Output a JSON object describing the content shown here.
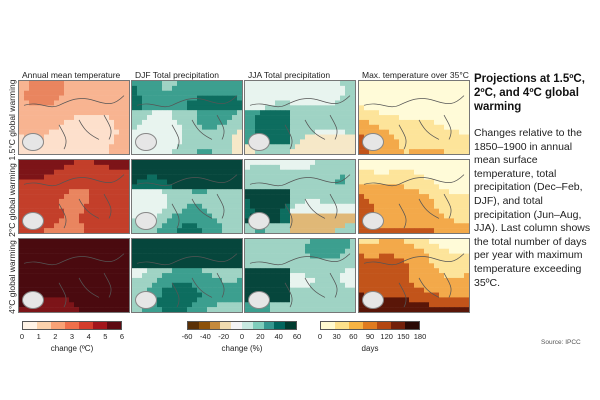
{
  "columns": [
    "Annual mean temperature",
    "DJF Total precipitation",
    "JJA Total precipitation",
    "Max. temperature over 35°C"
  ],
  "rows": [
    "1.5°C global warming",
    "2°C global warming",
    "4°C global warming"
  ],
  "colorbars": [
    {
      "ticks": [
        "0",
        "1",
        "2",
        "3",
        "4",
        "5",
        "6"
      ],
      "label": "change (ºC)",
      "colors": [
        "#fff3e6",
        "#fcd2ac",
        "#f9a276",
        "#ef6f4b",
        "#d43d2c",
        "#a3151b",
        "#5e0a12"
      ]
    },
    {
      "ticks": [
        "-60",
        "-40",
        "-20",
        "0",
        "20",
        "40",
        "60"
      ],
      "label": "change (%)",
      "colors": [
        "#5a3006",
        "#8c510a",
        "#c58a3c",
        "#f0dbb0",
        "#f4f4f4",
        "#c7e9e0",
        "#7fcdbb",
        "#35978f",
        "#01665e",
        "#003c30"
      ]
    },
    {
      "ticks": [
        "0",
        "30",
        "60",
        "90",
        "120",
        "150",
        "180"
      ],
      "label": "days",
      "colors": [
        "#fffad0",
        "#fde08a",
        "#f6b343",
        "#e07b1f",
        "#b34712",
        "#73200a",
        "#2b0a05"
      ]
    }
  ],
  "side": {
    "title": "Projections at 1.5ºC, 2ºC, and 4ºC global warming",
    "description": "Changes relative to the 1850–1900 in annual mean surface temperature, total precipitation (Dec–Feb, DJF), and  total precipitation (Jun–Aug, JJA). Last column shows the total number of days per year with maximum temperature exceeding 35ºC."
  },
  "source": "Source: IPCC",
  "colors": {
    "temperature": [
      "#fde0cc",
      "#f8b491",
      "#e9855f",
      "#c33f2a",
      "#7d1418",
      "#4a0a0f"
    ],
    "precip_wet": [
      "#e8f4ef",
      "#9fd3c4",
      "#3c9f8f",
      "#0d6d5f",
      "#06463c"
    ],
    "precip_dry": [
      "#f6e8c8",
      "#e0b877",
      "#b97a2f"
    ],
    "heat_days": [
      "#fffbd8",
      "#fde49a",
      "#f3a94a",
      "#c2541a",
      "#5a1608",
      "#240603"
    ]
  }
}
